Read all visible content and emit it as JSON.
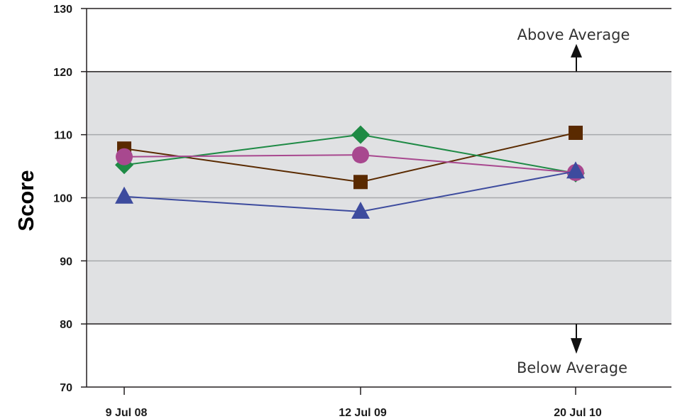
{
  "chart_data": {
    "type": "line",
    "title": "",
    "xlabel": "",
    "ylabel": "Score",
    "ylim": [
      70,
      130
    ],
    "yticks": [
      70,
      80,
      90,
      100,
      110,
      120,
      130
    ],
    "categories": [
      "9 Jul 08",
      "12 Jul 09",
      "20 Jul 10"
    ],
    "average_band": [
      80,
      120
    ],
    "grid": true,
    "annotations": {
      "above": "Above Average",
      "below": "Below Average"
    },
    "series": [
      {
        "marker": "square",
        "color": "#5a2a00",
        "values": [
          107.8,
          102.5,
          110.3
        ]
      },
      {
        "marker": "diamond",
        "color": "#1e8a45",
        "values": [
          105.2,
          110.0,
          103.9
        ]
      },
      {
        "marker": "circle",
        "color": "#a8488f",
        "values": [
          106.5,
          106.8,
          104.0
        ]
      },
      {
        "marker": "triangle",
        "color": "#3d4b9e",
        "values": [
          100.2,
          97.8,
          104.2
        ]
      }
    ],
    "colors": {
      "band": "#e0e1e3",
      "grid": "#a7a9ac",
      "axis": "#231f20"
    }
  }
}
